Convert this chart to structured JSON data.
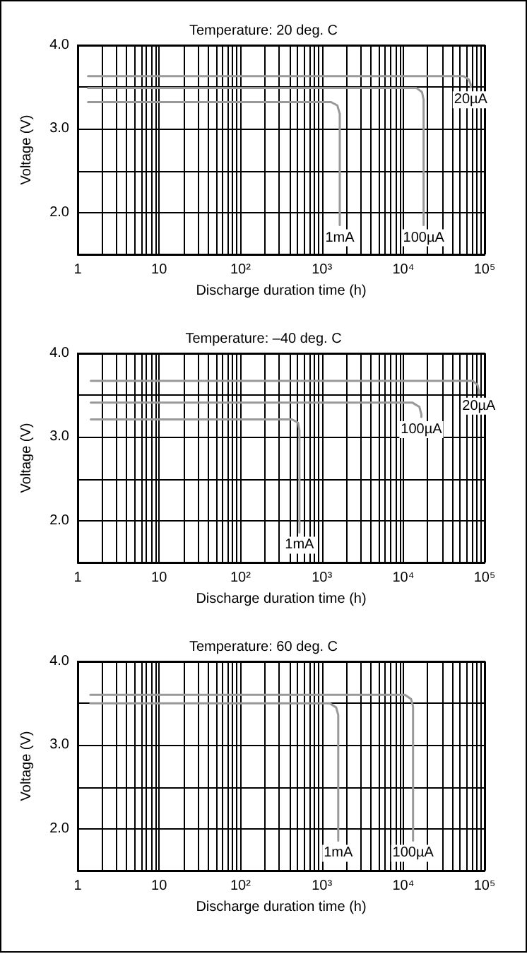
{
  "chart_data": [
    {
      "type": "line",
      "title": "Temperature: 20 deg. C",
      "xlabel": "Discharge duration time (h)",
      "ylabel": "Voltage (V)",
      "log": "x",
      "grid": true,
      "xlim": [
        1,
        100000
      ],
      "ylim": [
        1.5,
        4.0
      ],
      "xticks": [
        {
          "value": 1,
          "label": "1"
        },
        {
          "value": 2,
          "label": null
        },
        {
          "value": 3,
          "label": null
        },
        {
          "value": 4,
          "label": null
        },
        {
          "value": 5,
          "label": null
        },
        {
          "value": 6,
          "label": null
        },
        {
          "value": 7,
          "label": null
        },
        {
          "value": 8,
          "label": null
        },
        {
          "value": 9,
          "label": null
        },
        {
          "value": 10,
          "label": "10"
        },
        {
          "value": 20,
          "label": null
        },
        {
          "value": 30,
          "label": null
        },
        {
          "value": 40,
          "label": null
        },
        {
          "value": 50,
          "label": null
        },
        {
          "value": 60,
          "label": null
        },
        {
          "value": 70,
          "label": null
        },
        {
          "value": 80,
          "label": null
        },
        {
          "value": 90,
          "label": null
        },
        {
          "value": 100,
          "label": "10²"
        },
        {
          "value": 200,
          "label": null
        },
        {
          "value": 300,
          "label": null
        },
        {
          "value": 400,
          "label": null
        },
        {
          "value": 500,
          "label": null
        },
        {
          "value": 600,
          "label": null
        },
        {
          "value": 700,
          "label": null
        },
        {
          "value": 800,
          "label": null
        },
        {
          "value": 900,
          "label": null
        },
        {
          "value": 1000,
          "label": "10³"
        },
        {
          "value": 2000,
          "label": null
        },
        {
          "value": 3000,
          "label": null
        },
        {
          "value": 4000,
          "label": null
        },
        {
          "value": 5000,
          "label": null
        },
        {
          "value": 6000,
          "label": null
        },
        {
          "value": 7000,
          "label": null
        },
        {
          "value": 8000,
          "label": null
        },
        {
          "value": 9000,
          "label": null
        },
        {
          "value": 10000,
          "label": "10⁴"
        },
        {
          "value": 20000,
          "label": null
        },
        {
          "value": 30000,
          "label": null
        },
        {
          "value": 40000,
          "label": null
        },
        {
          "value": 50000,
          "label": null
        },
        {
          "value": 60000,
          "label": null
        },
        {
          "value": 70000,
          "label": null
        },
        {
          "value": 80000,
          "label": null
        },
        {
          "value": 90000,
          "label": null
        },
        {
          "value": 100000,
          "label": "10⁵"
        }
      ],
      "yticks": [
        {
          "value": 2,
          "label": "2.0"
        },
        {
          "value": 2.5,
          "label": null
        },
        {
          "value": 3,
          "label": "3.0"
        },
        {
          "value": 3.5,
          "label": null
        },
        {
          "value": 4,
          "label": "4.0"
        }
      ],
      "series": [
        {
          "name": "1mA",
          "color": "#999999",
          "x": [
            1.34,
            1300,
            1550,
            1660,
            1660
          ],
          "values": [
            3.32,
            3.32,
            3.28,
            3.18,
            1.85
          ]
        },
        {
          "name": "100µA",
          "color": "#999999",
          "x": [
            1.34,
            14500,
            17000,
            17800,
            17800
          ],
          "values": [
            3.49,
            3.49,
            3.44,
            3.35,
            1.85
          ]
        },
        {
          "name": "20µA",
          "color": "#999999",
          "x": [
            1.34,
            55000,
            64000,
            67500,
            67500
          ],
          "values": [
            3.63,
            3.63,
            3.59,
            3.53,
            3.5
          ]
        }
      ]
    },
    {
      "type": "line",
      "title": "Temperature: –40 deg. C",
      "xlabel": "Discharge duration time (h)",
      "ylabel": "Voltage (V)",
      "log": "x",
      "grid": true,
      "xlim": [
        1,
        100000
      ],
      "ylim": [
        1.5,
        4.0
      ],
      "xticks": [
        {
          "value": 1,
          "label": "1"
        },
        {
          "value": 2,
          "label": null
        },
        {
          "value": 3,
          "label": null
        },
        {
          "value": 4,
          "label": null
        },
        {
          "value": 5,
          "label": null
        },
        {
          "value": 6,
          "label": null
        },
        {
          "value": 7,
          "label": null
        },
        {
          "value": 8,
          "label": null
        },
        {
          "value": 9,
          "label": null
        },
        {
          "value": 10,
          "label": "10"
        },
        {
          "value": 20,
          "label": null
        },
        {
          "value": 30,
          "label": null
        },
        {
          "value": 40,
          "label": null
        },
        {
          "value": 50,
          "label": null
        },
        {
          "value": 60,
          "label": null
        },
        {
          "value": 70,
          "label": null
        },
        {
          "value": 80,
          "label": null
        },
        {
          "value": 90,
          "label": null
        },
        {
          "value": 100,
          "label": "10²"
        },
        {
          "value": 200,
          "label": null
        },
        {
          "value": 300,
          "label": null
        },
        {
          "value": 400,
          "label": null
        },
        {
          "value": 500,
          "label": null
        },
        {
          "value": 600,
          "label": null
        },
        {
          "value": 700,
          "label": null
        },
        {
          "value": 800,
          "label": null
        },
        {
          "value": 900,
          "label": null
        },
        {
          "value": 1000,
          "label": "10³"
        },
        {
          "value": 2000,
          "label": null
        },
        {
          "value": 3000,
          "label": null
        },
        {
          "value": 4000,
          "label": null
        },
        {
          "value": 5000,
          "label": null
        },
        {
          "value": 6000,
          "label": null
        },
        {
          "value": 7000,
          "label": null
        },
        {
          "value": 8000,
          "label": null
        },
        {
          "value": 9000,
          "label": null
        },
        {
          "value": 10000,
          "label": "10⁴"
        },
        {
          "value": 20000,
          "label": null
        },
        {
          "value": 30000,
          "label": null
        },
        {
          "value": 40000,
          "label": null
        },
        {
          "value": 50000,
          "label": null
        },
        {
          "value": 60000,
          "label": null
        },
        {
          "value": 70000,
          "label": null
        },
        {
          "value": 80000,
          "label": null
        },
        {
          "value": 90000,
          "label": null
        },
        {
          "value": 100000,
          "label": "10⁵"
        }
      ],
      "yticks": [
        {
          "value": 2,
          "label": "2.0"
        },
        {
          "value": 2.5,
          "label": null
        },
        {
          "value": 3,
          "label": "3.0"
        },
        {
          "value": 3.5,
          "label": null
        },
        {
          "value": 4,
          "label": "4.0"
        }
      ],
      "series": [
        {
          "name": "1mA",
          "color": "#999999",
          "x": [
            1.45,
            430,
            510,
            530,
            530
          ],
          "values": [
            3.21,
            3.21,
            3.17,
            3.08,
            1.86
          ]
        },
        {
          "name": "100µA",
          "color": "#999999",
          "x": [
            1.45,
            13000,
            15800,
            16700,
            16700
          ],
          "values": [
            3.41,
            3.41,
            3.36,
            3.27,
            3.24
          ]
        },
        {
          "name": "20µA",
          "color": "#999999",
          "x": [
            1.45,
            72000,
            82000,
            85000,
            85000
          ],
          "values": [
            3.67,
            3.67,
            3.62,
            3.55,
            3.52
          ]
        }
      ]
    },
    {
      "type": "line",
      "title": "Temperature: 60 deg. C",
      "xlabel": "Discharge duration time (h)",
      "ylabel": "Voltage (V)",
      "log": "x",
      "grid": true,
      "xlim": [
        1,
        100000
      ],
      "ylim": [
        1.5,
        4.0
      ],
      "xticks": [
        {
          "value": 1,
          "label": "1"
        },
        {
          "value": 2,
          "label": null
        },
        {
          "value": 3,
          "label": null
        },
        {
          "value": 4,
          "label": null
        },
        {
          "value": 5,
          "label": null
        },
        {
          "value": 6,
          "label": null
        },
        {
          "value": 7,
          "label": null
        },
        {
          "value": 8,
          "label": null
        },
        {
          "value": 9,
          "label": null
        },
        {
          "value": 10,
          "label": "10"
        },
        {
          "value": 20,
          "label": null
        },
        {
          "value": 30,
          "label": null
        },
        {
          "value": 40,
          "label": null
        },
        {
          "value": 50,
          "label": null
        },
        {
          "value": 60,
          "label": null
        },
        {
          "value": 70,
          "label": null
        },
        {
          "value": 80,
          "label": null
        },
        {
          "value": 90,
          "label": null
        },
        {
          "value": 100,
          "label": "10²"
        },
        {
          "value": 200,
          "label": null
        },
        {
          "value": 300,
          "label": null
        },
        {
          "value": 400,
          "label": null
        },
        {
          "value": 500,
          "label": null
        },
        {
          "value": 600,
          "label": null
        },
        {
          "value": 700,
          "label": null
        },
        {
          "value": 800,
          "label": null
        },
        {
          "value": 900,
          "label": null
        },
        {
          "value": 1000,
          "label": "10³"
        },
        {
          "value": 2000,
          "label": null
        },
        {
          "value": 3000,
          "label": null
        },
        {
          "value": 4000,
          "label": null
        },
        {
          "value": 5000,
          "label": null
        },
        {
          "value": 6000,
          "label": null
        },
        {
          "value": 7000,
          "label": null
        },
        {
          "value": 8000,
          "label": null
        },
        {
          "value": 9000,
          "label": null
        },
        {
          "value": 10000,
          "label": "10⁴"
        },
        {
          "value": 20000,
          "label": null
        },
        {
          "value": 30000,
          "label": null
        },
        {
          "value": 40000,
          "label": null
        },
        {
          "value": 50000,
          "label": null
        },
        {
          "value": 60000,
          "label": null
        },
        {
          "value": 70000,
          "label": null
        },
        {
          "value": 80000,
          "label": null
        },
        {
          "value": 90000,
          "label": null
        },
        {
          "value": 100000,
          "label": "10⁵"
        }
      ],
      "yticks": [
        {
          "value": 2,
          "label": "2.0"
        },
        {
          "value": 2.5,
          "label": null
        },
        {
          "value": 3,
          "label": "3.0"
        },
        {
          "value": 3.5,
          "label": null
        },
        {
          "value": 4,
          "label": "4.0"
        }
      ],
      "series": [
        {
          "name": "1mA",
          "color": "#999999",
          "x": [
            1.43,
            1250,
            1500,
            1590,
            1590
          ],
          "values": [
            3.5,
            3.5,
            3.45,
            3.36,
            1.86
          ]
        },
        {
          "name": "100µA",
          "color": "#999999",
          "x": [
            1.43,
            10500,
            12500,
            13200,
            13200
          ],
          "values": [
            3.6,
            3.6,
            3.55,
            3.46,
            1.86
          ]
        }
      ]
    }
  ]
}
